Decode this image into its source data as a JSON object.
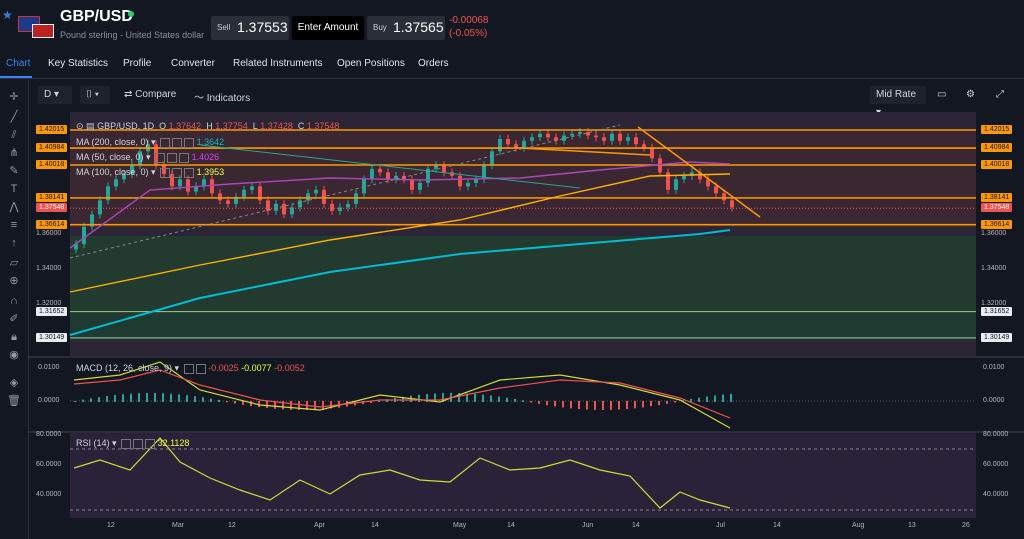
{
  "header": {
    "symbol": "GBP/USD",
    "subtitle": "Pound sterling - United States dollar",
    "sell_label": "Sell",
    "sell_price": "1.37553",
    "enter_amount": "Enter Amount",
    "buy_label": "Buy",
    "buy_price": "1.37565",
    "change_abs": "-0.00068",
    "change_pct": "(-0.05%)"
  },
  "tabs": [
    "Chart",
    "Key Statistics",
    "Profile",
    "Converter",
    "Related Instruments",
    "Open Positions",
    "Orders"
  ],
  "toolbar": {
    "interval": "D",
    "compare": "Compare",
    "indicators": "Indicators",
    "price_mode": "Mid Rate"
  },
  "legend": {
    "title": "GBP/USD, 1D",
    "o_label": "O",
    "o": "1.37642",
    "h_label": "H",
    "h": "1.37754",
    "l_label": "L",
    "l": "1.37428",
    "c_label": "C",
    "c": "1.37548",
    "ma200": "MA (200, close, 0)",
    "ma200_val": "1.3642",
    "ma50": "MA (50, close, 0)",
    "ma50_val": "1.4026",
    "ma100": "MA (100, close, 0)",
    "ma100_val": "1.3953"
  },
  "price_axis": {
    "levels": [
      "1.42015",
      "1.40984",
      "1.40018",
      "1.38141",
      "1.37548",
      "1.36614",
      "1.36000",
      "1.34000",
      "1.32000",
      "1.31652",
      "1.30149"
    ]
  },
  "macd": {
    "label": "MACD (12, 26, close, 9)",
    "v1": "-0.0025",
    "v2": "-0.0077",
    "v3": "-0.0052",
    "axis": [
      "0.0100",
      "0.0000"
    ]
  },
  "rsi": {
    "label": "RSI (14)",
    "value": "32.1128",
    "axis": [
      "80.0000",
      "60.0000",
      "40.0000"
    ]
  },
  "time_axis": [
    "12",
    "Mar",
    "12",
    "Apr",
    "14",
    "May",
    "14",
    "Jun",
    "14",
    "Jul",
    "14",
    "Aug",
    "13",
    "26"
  ],
  "colors": {
    "bg": "#131722",
    "up": "#26a69a",
    "down": "#ef5350",
    "orange": "#ff9800",
    "ma200": "#00bcd4",
    "ma50": "#ab47bc",
    "ma100": "#cddc39"
  }
}
